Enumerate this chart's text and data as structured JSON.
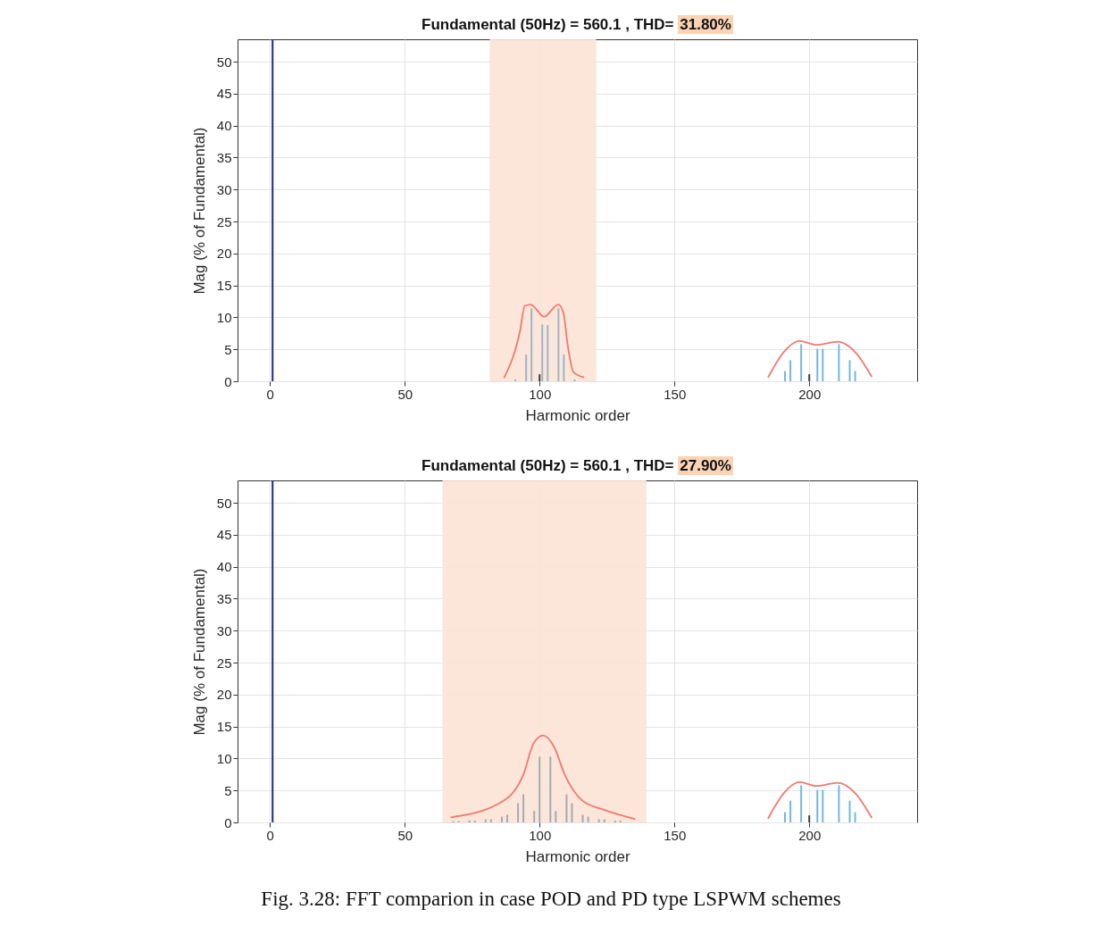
{
  "chart_data": [
    {
      "type": "bar",
      "title": "Fundamental (50Hz) = 560.1 , THD= 31.80%",
      "xlabel": "Harmonic order",
      "ylabel": "Mag (% of Fundamental)",
      "xlim": [
        -12,
        240
      ],
      "xticks": [
        0,
        50,
        100,
        150,
        200
      ],
      "ylim": [
        0,
        53.5
      ],
      "yticks": [
        0,
        5,
        10,
        15,
        20,
        25,
        30,
        35,
        40,
        45,
        50
      ],
      "grid": true,
      "bands": [
        {
          "axis": "x",
          "from": 81.5,
          "to": 121,
          "color": "#fce3d5"
        }
      ],
      "ref_lines": [
        {
          "axis": "x",
          "value": 1,
          "color": "#1f2a80"
        }
      ],
      "series": [
        {
          "color": "#9ab5c9",
          "x": [
            91,
            95,
            97,
            101,
            103,
            107,
            109,
            113
          ],
          "values": [
            0.3,
            4.2,
            11.4,
            8.9,
            8.8,
            11.4,
            4.2,
            0.3
          ]
        },
        {
          "color": "#74b6e0",
          "x": [
            191,
            193,
            197,
            203,
            205,
            211,
            215,
            217
          ],
          "values": [
            1.6,
            3.3,
            5.8,
            5.1,
            5.1,
            5.8,
            3.3,
            1.6
          ]
        },
        {
          "color": "#3a3a3a",
          "x": [
            100,
            200
          ],
          "values": [
            1.1,
            1.1
          ]
        },
        {
          "type": "line",
          "color": "#f07a70",
          "x": [
            86.8,
            92.8,
            94.5,
            96.7,
            101.7,
            106.9,
            108.8,
            110.4,
            112.6,
            116.5
          ],
          "values": [
            0.5,
            8.0,
            11.8,
            12.0,
            10.1,
            12.0,
            10.8,
            5.7,
            1.4,
            0.6
          ]
        },
        {
          "type": "line",
          "color": "#f07a70",
          "x": [
            184.7,
            190.8,
            196.3,
            202.9,
            210.6,
            217.2,
            223.2
          ],
          "values": [
            0.6,
            4.7,
            6.3,
            5.7,
            6.2,
            4.5,
            0.7
          ]
        }
      ]
    },
    {
      "type": "bar",
      "title": "Fundamental (50Hz) = 560.1 , THD= 27.90%",
      "xlabel": "Harmonic order",
      "ylabel": "Mag (% of Fundamental)",
      "xlim": [
        -12,
        240
      ],
      "xticks": [
        0,
        50,
        100,
        150,
        200
      ],
      "ylim": [
        0,
        53.5
      ],
      "yticks": [
        0,
        5,
        10,
        15,
        20,
        25,
        30,
        35,
        40,
        45,
        50
      ],
      "grid": true,
      "bands": [
        {
          "axis": "x",
          "from": 64,
          "to": 139.6,
          "color": "#fce3d5"
        }
      ],
      "ref_lines": [
        {
          "axis": "x",
          "value": 1,
          "color": "#1f2a80"
        }
      ],
      "annotations": [
        "Fig.  3.28: FFT comparion in case POD and PD type LSPWM schemes"
      ],
      "series": [
        {
          "color": "#a3abb3",
          "x": [
            68,
            70,
            74,
            76,
            80,
            82,
            86,
            88,
            92,
            94,
            98,
            100,
            104,
            106,
            110,
            112,
            116,
            118,
            122,
            124,
            128,
            130
          ],
          "values": [
            0.2,
            0.2,
            0.3,
            0.3,
            0.5,
            0.5,
            0.9,
            1.2,
            3.0,
            4.4,
            1.8,
            10.3,
            10.3,
            1.8,
            4.4,
            3.0,
            1.2,
            0.9,
            0.5,
            0.5,
            0.3,
            0.3
          ]
        },
        {
          "color": "#74b6e0",
          "x": [
            191,
            193,
            197,
            203,
            205,
            211,
            215,
            217
          ],
          "values": [
            1.6,
            3.4,
            5.8,
            5.1,
            5.1,
            5.8,
            3.4,
            1.6
          ]
        },
        {
          "color": "#3a3a3a",
          "x": [
            200
          ],
          "values": [
            1.1
          ]
        },
        {
          "type": "line",
          "color": "#f07a70",
          "x": [
            67.0,
            85.1,
            94.0,
            97.8,
            101.4,
            105.5,
            109.3,
            115.9,
            123.7,
            135.5
          ],
          "values": [
            0.8,
            3.0,
            7.5,
            12.4,
            13.6,
            11.7,
            7.5,
            3.4,
            2.0,
            0.5
          ]
        },
        {
          "type": "line",
          "color": "#f07a70",
          "x": [
            184.7,
            190.8,
            196.3,
            202.9,
            210.6,
            217.2,
            223.2
          ],
          "values": [
            0.6,
            4.7,
            6.3,
            5.7,
            6.2,
            4.5,
            0.7
          ]
        }
      ]
    }
  ]
}
